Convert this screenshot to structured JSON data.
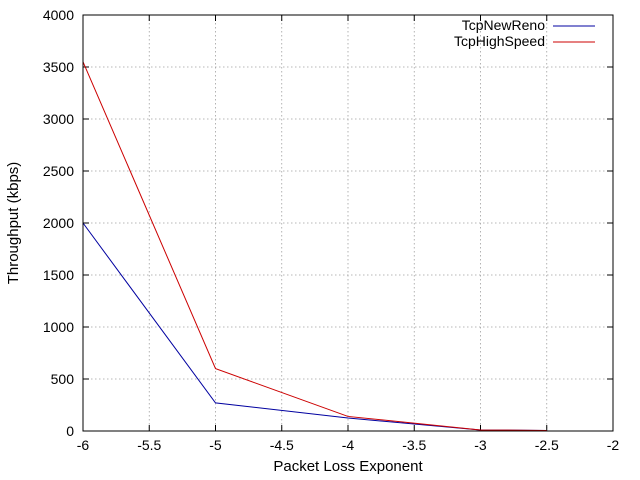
{
  "chart_data": {
    "type": "line",
    "xlabel": "Packet Loss Exponent",
    "ylabel": "Throughput (kbps)",
    "xlim": [
      -6,
      -2
    ],
    "ylim": [
      0,
      4000
    ],
    "xticks": [
      -6,
      -5.5,
      -5,
      -4.5,
      -4,
      -3.5,
      -3,
      -2.5,
      -2
    ],
    "xtick_labels": [
      "-6",
      "-5.5",
      "-5",
      "-4.5",
      "-4",
      "-3.5",
      "-3",
      "-2.5",
      "-2"
    ],
    "yticks": [
      0,
      500,
      1000,
      1500,
      2000,
      2500,
      3000,
      3500,
      4000
    ],
    "ytick_labels": [
      "0",
      "500",
      "1000",
      "1500",
      "2000",
      "2500",
      "3000",
      "3500",
      "4000"
    ],
    "grid": true,
    "legend_position": "top-right",
    "series": [
      {
        "name": "TcpNewReno",
        "color": "#0000a0",
        "x": [
          -6,
          -5,
          -4,
          -3,
          -2.5
        ],
        "y": [
          2000,
          270,
          125,
          10,
          5
        ]
      },
      {
        "name": "TcpHighSpeed",
        "color": "#cc0000",
        "x": [
          -6,
          -5,
          -4,
          -3,
          -2.5
        ],
        "y": [
          3550,
          600,
          140,
          10,
          5
        ]
      }
    ]
  }
}
